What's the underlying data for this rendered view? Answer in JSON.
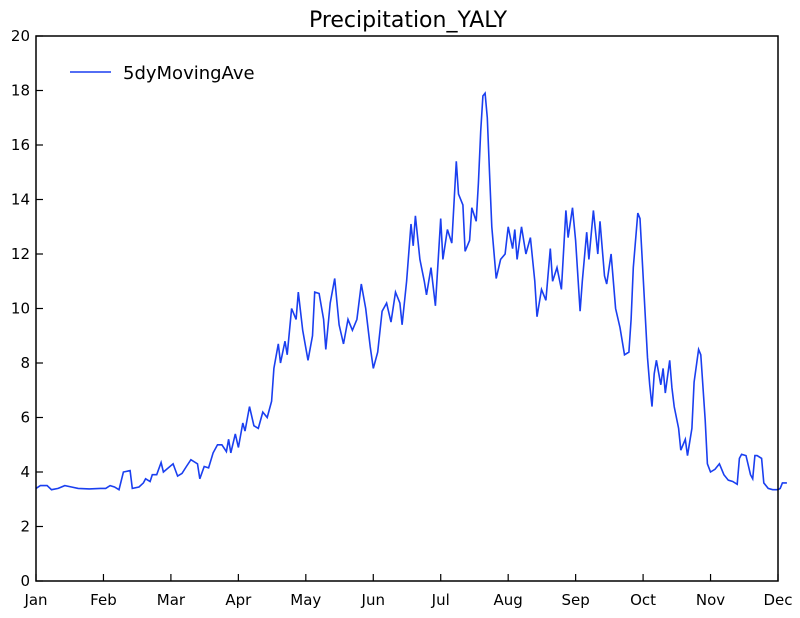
{
  "chart_data": {
    "type": "line",
    "title": "Precipitation_YALY",
    "xlabel": "",
    "ylabel": "",
    "ylim": [
      0,
      20
    ],
    "yticks": [
      0,
      2,
      4,
      6,
      8,
      10,
      12,
      14,
      16,
      18,
      20
    ],
    "xticks": [
      "Jan",
      "Feb",
      "Mar",
      "Apr",
      "May",
      "Jun",
      "Jul",
      "Aug",
      "Sep",
      "Oct",
      "Nov",
      "Dec"
    ],
    "grid": false,
    "legend": "top-left",
    "line_color": "#1a3ff0",
    "series": [
      {
        "name": "5dyMovingAve",
        "points": [
          [
            "Jan 1",
            3.4
          ],
          [
            "Jan 3",
            3.5
          ],
          [
            "Jan 6",
            3.5
          ],
          [
            "Jan 8",
            3.35
          ],
          [
            "Jan 11",
            3.4
          ],
          [
            "Jan 14",
            3.5
          ],
          [
            "Jan 17",
            3.45
          ],
          [
            "Jan 20",
            3.4
          ],
          [
            "Jan 25",
            3.38
          ],
          [
            "Jan 30",
            3.4
          ],
          [
            "Feb 2",
            3.4
          ],
          [
            "Feb 4",
            3.5
          ],
          [
            "Feb 6",
            3.45
          ],
          [
            "Feb 8",
            3.35
          ],
          [
            "Feb 10",
            4.0
          ],
          [
            "Feb 13",
            4.05
          ],
          [
            "Feb 14",
            3.4
          ],
          [
            "Feb 17",
            3.45
          ],
          [
            "Feb 19",
            3.6
          ],
          [
            "Feb 20",
            3.75
          ],
          [
            "Feb 22",
            3.65
          ],
          [
            "Feb 23",
            3.9
          ],
          [
            "Feb 25",
            3.9
          ],
          [
            "Feb 27",
            4.35
          ],
          [
            "Feb 28",
            4.0
          ],
          [
            "Mar 2",
            4.3
          ],
          [
            "Mar 4",
            3.85
          ],
          [
            "Mar 6",
            3.95
          ],
          [
            "Mar 8",
            4.2
          ],
          [
            "Mar 10",
            4.45
          ],
          [
            "Mar 13",
            4.3
          ],
          [
            "Mar 14",
            3.75
          ],
          [
            "Mar 16",
            4.2
          ],
          [
            "Mar 18",
            4.15
          ],
          [
            "Mar 20",
            4.7
          ],
          [
            "Mar 22",
            5.0
          ],
          [
            "Mar 24",
            5.0
          ],
          [
            "Mar 26",
            4.75
          ],
          [
            "Mar 27",
            5.2
          ],
          [
            "Mar 28",
            4.7
          ],
          [
            "Mar 30",
            5.4
          ],
          [
            "Apr 1",
            4.9
          ],
          [
            "Apr 3",
            5.8
          ],
          [
            "Apr 4",
            5.5
          ],
          [
            "Apr 6",
            6.4
          ],
          [
            "Apr 8",
            5.7
          ],
          [
            "Apr 10",
            5.6
          ],
          [
            "Apr 12",
            6.2
          ],
          [
            "Apr 14",
            6.0
          ],
          [
            "Apr 16",
            6.6
          ],
          [
            "Apr 17",
            7.8
          ],
          [
            "Apr 19",
            8.7
          ],
          [
            "Apr 20",
            8.0
          ],
          [
            "Apr 22",
            8.8
          ],
          [
            "Apr 23",
            8.3
          ],
          [
            "Apr 25",
            10.0
          ],
          [
            "Apr 27",
            9.6
          ],
          [
            "Apr 28",
            10.6
          ],
          [
            "Apr 30",
            9.2
          ],
          [
            "May 2",
            8.1
          ],
          [
            "May 4",
            9.0
          ],
          [
            "May 5",
            10.6
          ],
          [
            "May 7",
            10.55
          ],
          [
            "May 9",
            9.6
          ],
          [
            "May 10",
            8.5
          ],
          [
            "May 12",
            10.2
          ],
          [
            "May 14",
            11.1
          ],
          [
            "May 16",
            9.4
          ],
          [
            "May 18",
            8.7
          ],
          [
            "May 20",
            9.6
          ],
          [
            "May 22",
            9.2
          ],
          [
            "May 24",
            9.6
          ],
          [
            "May 26",
            10.9
          ],
          [
            "May 28",
            10.0
          ],
          [
            "May 30",
            8.6
          ],
          [
            "Jun 1",
            7.8
          ],
          [
            "Jun 3",
            8.4
          ],
          [
            "Jun 5",
            9.9
          ],
          [
            "Jun 7",
            10.2
          ],
          [
            "Jun 9",
            9.5
          ],
          [
            "Jun 11",
            10.6
          ],
          [
            "Jun 13",
            10.2
          ],
          [
            "Jun 14",
            9.4
          ],
          [
            "Jun 16",
            11.0
          ],
          [
            "Jun 18",
            13.1
          ],
          [
            "Jun 19",
            12.3
          ],
          [
            "Jun 20",
            13.4
          ],
          [
            "Jun 22",
            11.8
          ],
          [
            "Jun 24",
            11.0
          ],
          [
            "Jun 25",
            10.5
          ],
          [
            "Jun 27",
            11.5
          ],
          [
            "Jun 29",
            10.1
          ],
          [
            "Jul 1",
            13.3
          ],
          [
            "Jul 2",
            11.8
          ],
          [
            "Jul 4",
            12.9
          ],
          [
            "Jul 6",
            12.4
          ],
          [
            "Jul 8",
            15.4
          ],
          [
            "Jul 9",
            14.2
          ],
          [
            "Jul 11",
            13.8
          ],
          [
            "Jul 12",
            12.1
          ],
          [
            "Jul 14",
            12.5
          ],
          [
            "Jul 15",
            13.7
          ],
          [
            "Jul 17",
            13.2
          ],
          [
            "Jul 18",
            14.6
          ],
          [
            "Jul 19",
            16.5
          ],
          [
            "Jul 20",
            17.8
          ],
          [
            "Jul 21",
            17.9
          ],
          [
            "Jul 22",
            17.0
          ],
          [
            "Jul 23",
            15.0
          ],
          [
            "Jul 24",
            13.0
          ],
          [
            "Jul 26",
            11.1
          ],
          [
            "Jul 28",
            11.8
          ],
          [
            "Jul 30",
            12.0
          ],
          [
            "Aug 1",
            13.0
          ],
          [
            "Aug 3",
            12.2
          ],
          [
            "Aug 4",
            12.9
          ],
          [
            "Aug 5",
            11.8
          ],
          [
            "Aug 7",
            13.0
          ],
          [
            "Aug 9",
            12.0
          ],
          [
            "Aug 11",
            12.6
          ],
          [
            "Aug 13",
            11.0
          ],
          [
            "Aug 14",
            9.7
          ],
          [
            "Aug 16",
            10.7
          ],
          [
            "Aug 18",
            10.3
          ],
          [
            "Aug 20",
            12.2
          ],
          [
            "Aug 21",
            11.0
          ],
          [
            "Aug 23",
            11.5
          ],
          [
            "Aug 25",
            10.7
          ],
          [
            "Aug 27",
            13.6
          ],
          [
            "Aug 28",
            12.6
          ],
          [
            "Aug 30",
            13.7
          ],
          [
            "Sep 1",
            12.5
          ],
          [
            "Sep 3",
            9.9
          ],
          [
            "Sep 4",
            11.0
          ],
          [
            "Sep 6",
            12.8
          ],
          [
            "Sep 7",
            11.8
          ],
          [
            "Sep 9",
            13.6
          ],
          [
            "Sep 11",
            12.0
          ],
          [
            "Sep 12",
            13.2
          ],
          [
            "Sep 14",
            11.2
          ],
          [
            "Sep 15",
            10.9
          ],
          [
            "Sep 17",
            12.0
          ],
          [
            "Sep 19",
            10.0
          ],
          [
            "Sep 21",
            9.3
          ],
          [
            "Sep 23",
            8.3
          ],
          [
            "Sep 25",
            8.4
          ],
          [
            "Sep 26",
            9.6
          ],
          [
            "Sep 27",
            11.5
          ],
          [
            "Sep 29",
            13.5
          ],
          [
            "Sep 30",
            13.3
          ],
          [
            "Oct 1",
            11.2
          ],
          [
            "Oct 3",
            8.2
          ],
          [
            "Oct 4",
            7.2
          ],
          [
            "Oct 5",
            6.4
          ],
          [
            "Oct 6",
            7.6
          ],
          [
            "Oct 7",
            8.1
          ],
          [
            "Oct 9",
            7.2
          ],
          [
            "Oct 10",
            7.8
          ],
          [
            "Oct 11",
            6.9
          ],
          [
            "Oct 13",
            8.1
          ],
          [
            "Oct 14",
            7.1
          ],
          [
            "Oct 15",
            6.4
          ],
          [
            "Oct 17",
            5.6
          ],
          [
            "Oct 18",
            4.8
          ],
          [
            "Oct 20",
            5.2
          ],
          [
            "Oct 21",
            4.6
          ],
          [
            "Oct 23",
            5.6
          ],
          [
            "Oct 24",
            7.3
          ],
          [
            "Oct 26",
            8.5
          ],
          [
            "Oct 27",
            8.3
          ],
          [
            "Oct 29",
            5.9
          ],
          [
            "Oct 30",
            4.3
          ],
          [
            "Nov 1",
            4.0
          ],
          [
            "Nov 3",
            4.1
          ],
          [
            "Nov 5",
            4.3
          ],
          [
            "Nov 7",
            3.9
          ],
          [
            "Nov 9",
            3.7
          ],
          [
            "Nov 11",
            3.65
          ],
          [
            "Nov 13",
            3.55
          ],
          [
            "Nov 14",
            4.5
          ],
          [
            "Nov 15",
            4.65
          ],
          [
            "Nov 17",
            4.6
          ],
          [
            "Nov 19",
            3.9
          ],
          [
            "Nov 20",
            3.75
          ],
          [
            "Nov 21",
            4.6
          ],
          [
            "Nov 22",
            4.6
          ],
          [
            "Nov 24",
            4.5
          ],
          [
            "Nov 25",
            3.6
          ],
          [
            "Nov 27",
            3.4
          ],
          [
            "Nov 29",
            3.35
          ],
          [
            "Dec 1",
            3.35
          ],
          [
            "Dec 2",
            3.4
          ],
          [
            "Dec 3",
            3.6
          ],
          [
            "Dec 4",
            3.6
          ],
          [
            "Dec 5",
            3.6
          ]
        ]
      }
    ]
  }
}
